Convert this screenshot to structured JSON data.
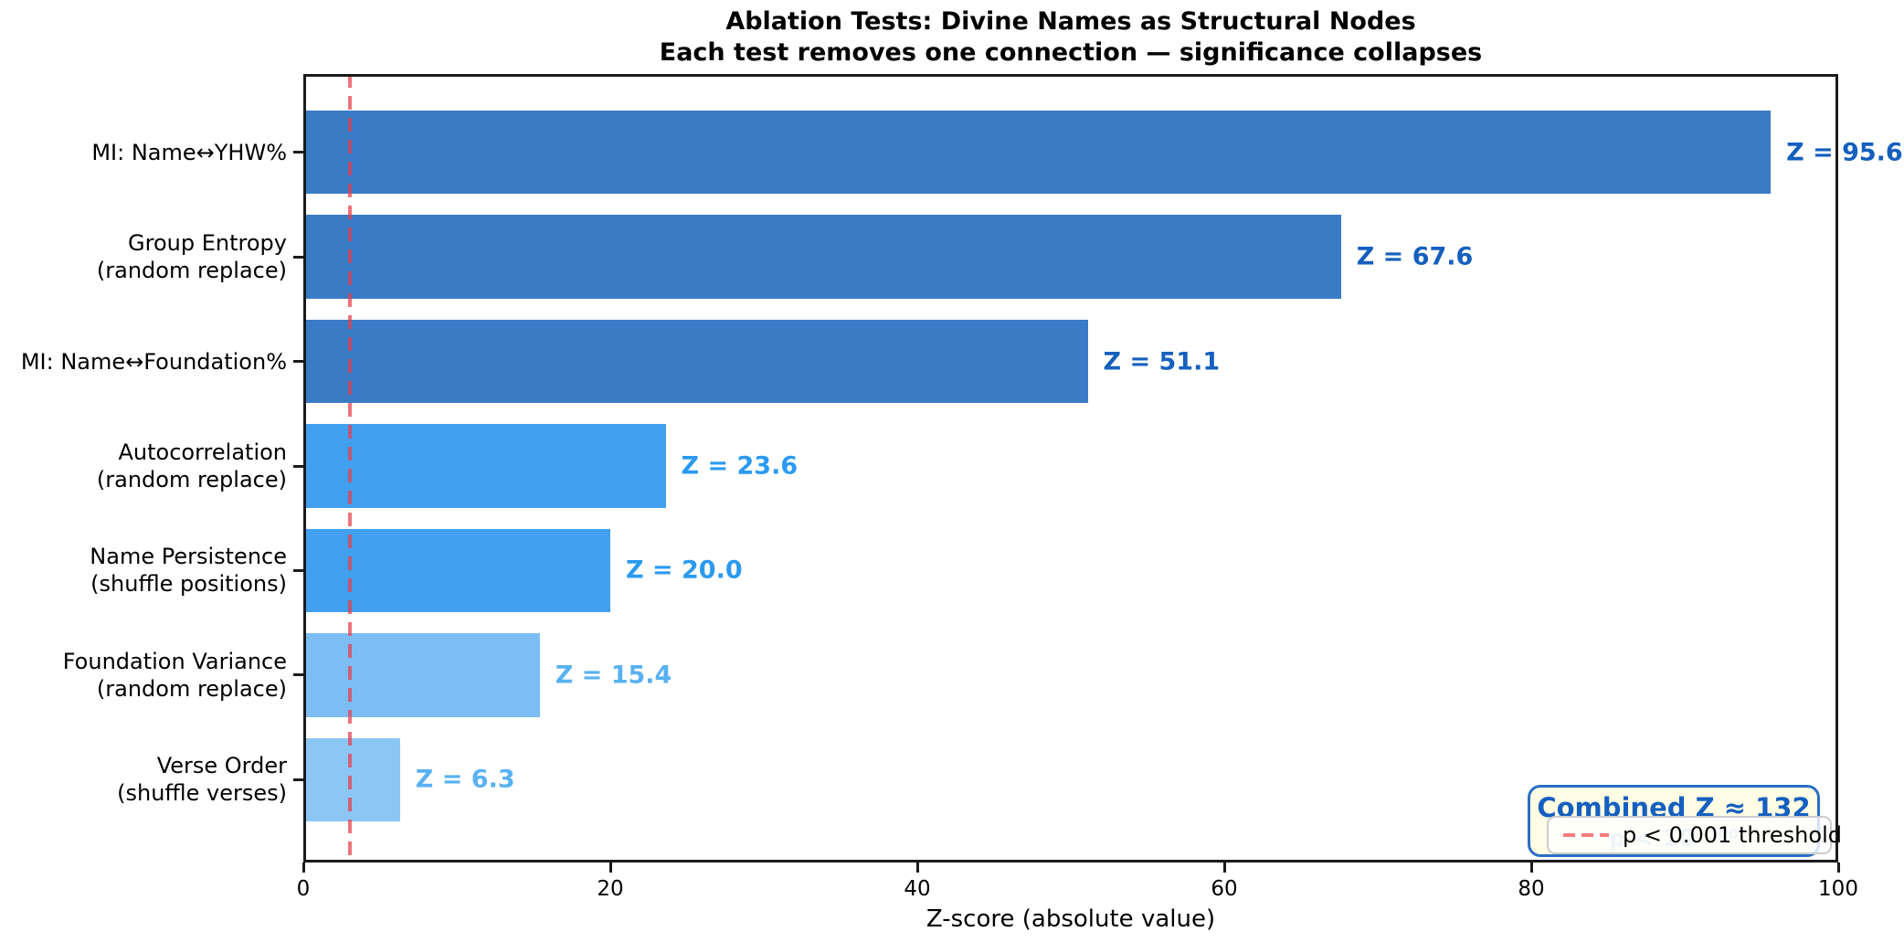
{
  "chart_data": {
    "type": "bar",
    "orientation": "horizontal",
    "title": "Ablation Tests: Divine Names as Structural Nodes",
    "subtitle": "Each test removes one connection — significance collapses",
    "xlabel": "Z-score (absolute value)",
    "xlim": [
      0,
      100
    ],
    "x_ticks": [
      "0",
      "20",
      "40",
      "60",
      "80",
      "100"
    ],
    "grid": false,
    "categories": [
      "MI: Name↔YHW%",
      "Group Entropy\n(random replace)",
      "MI: Name↔Foundation%",
      "Autocorrelation\n(random replace)",
      "Name Persistence\n(shuffle positions)",
      "Foundation Variance\n(random replace)",
      "Verse Order\n(shuffle verses)"
    ],
    "values": [
      95.6,
      67.6,
      51.1,
      23.6,
      20.0,
      15.4,
      6.3
    ],
    "bar_labels": [
      "Z = 95.6",
      "Z = 67.6",
      "Z = 51.1",
      "Z = 23.6",
      "Z = 20.0",
      "Z = 15.4",
      "Z = 6.3"
    ],
    "bar_colors": [
      "#3a7bc6",
      "#3a7bc6",
      "#3a7bc6",
      "#41a0f0",
      "#41a0f0",
      "#7cbef4",
      "#8cc6f4"
    ],
    "bar_label_colors": [
      "#155fbe",
      "#155fbe",
      "#155fbe",
      "#2b9af0",
      "#2b9af0",
      "#58b1f2",
      "#58b1f2"
    ],
    "threshold_line": {
      "x": 3.05,
      "style": "dashed",
      "color": "#f87d7d"
    },
    "legend": {
      "position": "lower right",
      "entries": [
        {
          "label": "p < 0.001 threshold",
          "marker": "dashed-line",
          "color": "#f87d7d"
        }
      ]
    },
    "annotation_box": {
      "line1": "Combined Z ≈ 132",
      "line2": "p < 10⁻¹⁰⁰"
    }
  }
}
